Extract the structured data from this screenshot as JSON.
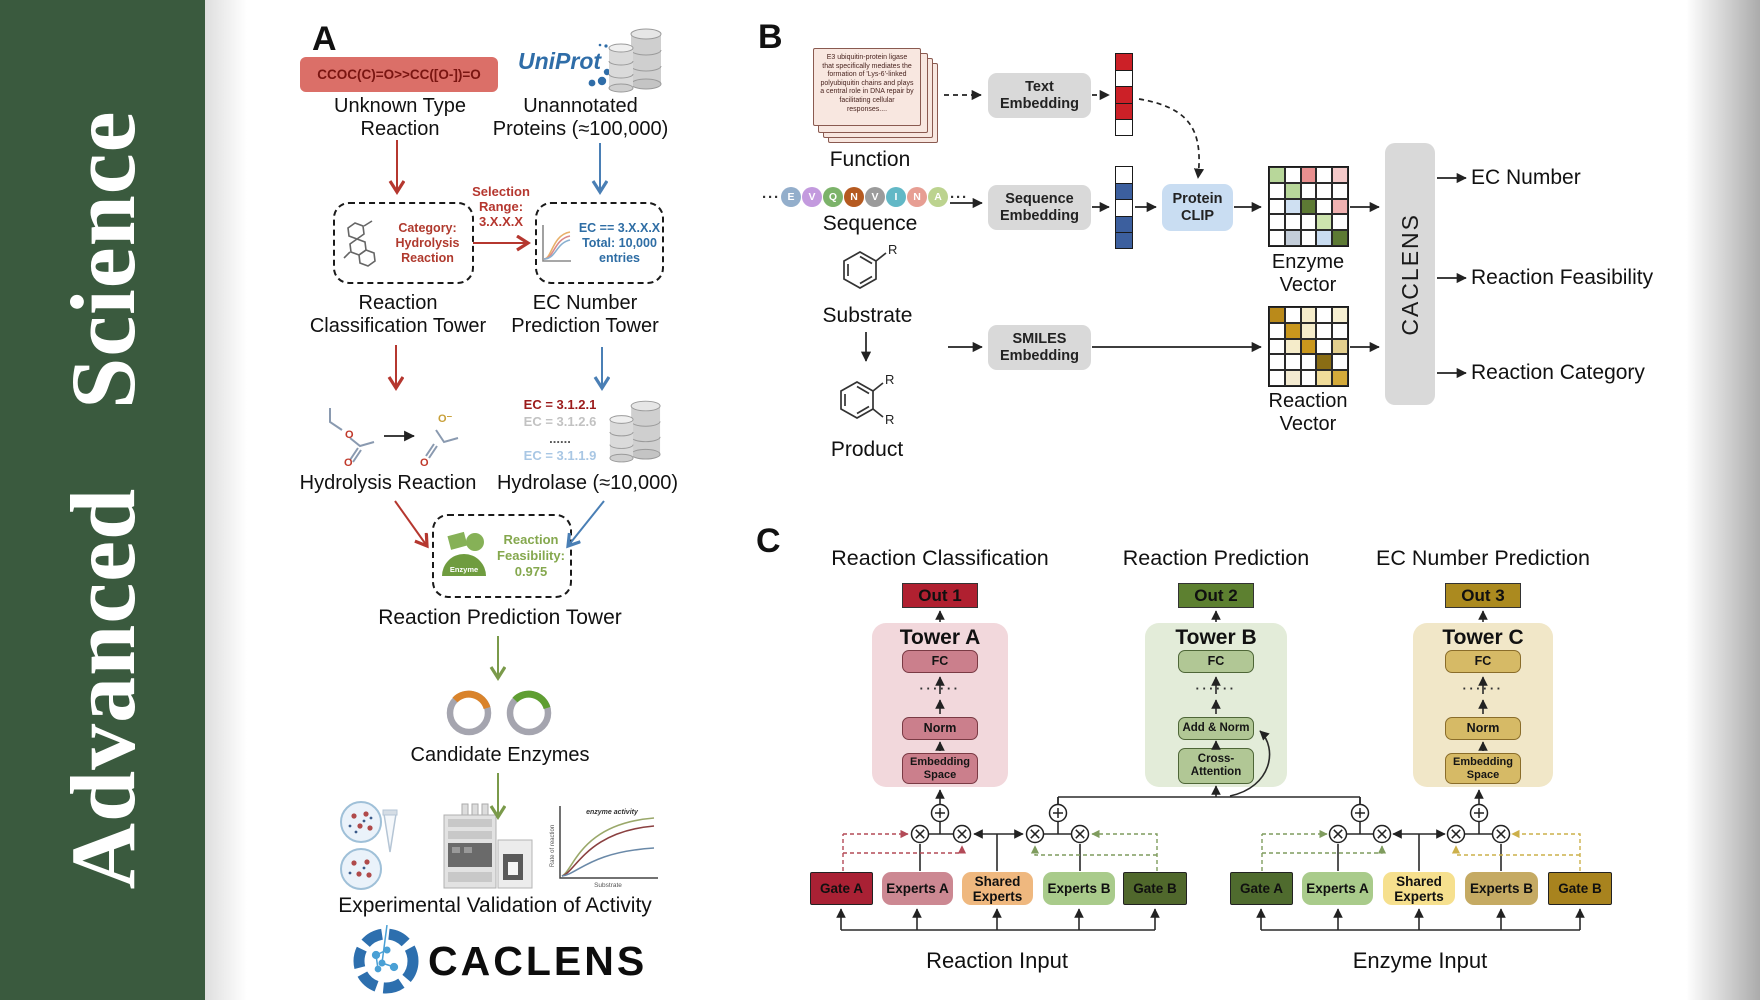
{
  "journal": {
    "title": "Advanced Science"
  },
  "colors": {
    "sidebar_green": "#3a5a3e",
    "red_accent": "#b5372f",
    "blue_accent": "#4a7fb5",
    "green_accent": "#7a9a4a",
    "smiles_box_bg": "#db6f68",
    "smiles_text": "#7a1511",
    "gray_box": "#d9d9d9",
    "protein_clip_bg": "#c9ddf2",
    "tower_a_bg": "#f2d8dc",
    "tower_a_box": "#cb7f8c",
    "out1_bg": "#b02030",
    "tower_b_bg": "#e3ecd9",
    "tower_b_box": "#b1c795",
    "out2_bg": "#5d8030",
    "tower_c_bg": "#f1e7c8",
    "tower_c_box": "#d6ba66",
    "out3_bg": "#ab8a1f",
    "moe_left": {
      "gate_a": "#a92134",
      "experts_a": "#cc8892",
      "shared": "#efb87f",
      "experts_b": "#a9cb8b",
      "gate_b": "#50682c"
    },
    "moe_right": {
      "gate_a": "#4f6b2e",
      "experts_a": "#a9cb8b",
      "shared": "#f6e08e",
      "experts_b": "#c5aa63",
      "gate_b": "#a8831e"
    }
  },
  "panelA": {
    "label": "A",
    "smiles": "CCOC(C)=O>>CC([O-])=O",
    "unknown_reaction": [
      "Unknown Type",
      "Reaction"
    ],
    "uniprot": "UniProt",
    "unannotated": [
      "Unannotated",
      "Proteins (≈100,000)"
    ],
    "selection": [
      "Selection",
      "Range:",
      "3.X.X.X"
    ],
    "category_box": [
      "Category:",
      "Hydrolysis",
      "Reaction"
    ],
    "ec_box": [
      "EC == 3.X.X.X",
      "Total: 10,000",
      "entries"
    ],
    "tower1": [
      "Reaction",
      "Classification Tower"
    ],
    "tower2": [
      "EC Number",
      "Prediction Tower"
    ],
    "ec_lines": [
      {
        "text": "EC = 3.1.2.1",
        "color": "#9b1b1b"
      },
      {
        "text": "EC = 3.1.2.6",
        "color": "#c2c2c2"
      },
      {
        "text": "......",
        "color": "#555555"
      },
      {
        "text": "EC = 3.1.1.9",
        "color": "#a9c7e4"
      }
    ],
    "hydrolysis": "Hydrolysis Reaction",
    "hydrolase": "Hydrolase (≈10,000)",
    "feasibility": [
      "Reaction",
      "Feasibility:",
      "0.975"
    ],
    "enzyme_icon_label": "Enzyme",
    "tower3": "Reaction Prediction Tower",
    "candidates": "Candidate Enzymes",
    "validation": "Experimental Validation of Activity",
    "minichart": {
      "curve_label": "enzyme activity",
      "ylabel": "Rate of reaction",
      "xlabel": "Substrate"
    },
    "brand": "CACLENS",
    "atom_o": "O",
    "atom_o_minus": "O⁻"
  },
  "panelB": {
    "label": "B",
    "function_card_text": "E3 ubiquitin-protein ligase that specifically mediates the formation of 'Lys-6'-linked polyubiquitin chains and plays a central role in DNA repair by facilitating cellular responses....",
    "function_label": "Function",
    "sequence_label": "Sequence",
    "substrate_label": "Substrate",
    "product_label": "Product",
    "r_group": "R",
    "ellipsis": "···",
    "text_embedding": "Text Embedding",
    "sequence_embedding": "Sequence Embedding",
    "smiles_embedding": "SMILES Embedding",
    "protein_clip": "Protein CLIP",
    "enzyme_vector_label": "Enzyme Vector",
    "reaction_vector_label": "Reaction Vector",
    "caclens_block": "CACLENS",
    "outputs": [
      "EC Number",
      "Reaction Feasibility",
      "Reaction Category"
    ],
    "sequence_beads": [
      {
        "letter": "E",
        "color": "#93aecb"
      },
      {
        "letter": "V",
        "color": "#c39ade"
      },
      {
        "letter": "Q",
        "color": "#7cb36a"
      },
      {
        "letter": "N",
        "color": "#b55a20"
      },
      {
        "letter": "V",
        "color": "#9b9b9b"
      },
      {
        "letter": "I",
        "color": "#62b8c6"
      },
      {
        "letter": "N",
        "color": "#e79e93"
      },
      {
        "letter": "A",
        "color": "#bcd38f"
      }
    ],
    "text_vector_cells": [
      "#cc2027",
      "#ffffff",
      "#cc2027",
      "#cc2027",
      "#ffffff"
    ],
    "sequence_vector_cells": [
      "#ffffff",
      "#3c5f9e",
      "#ffffff",
      "#3c5f9e",
      "#3c5f9e"
    ],
    "enzyme_vector_cells": [
      [
        "#b8d79a",
        "#ffffff",
        "#e88f8f",
        "#ffffff",
        "#f4c9c9"
      ],
      [
        "#ffffff",
        "#b8d79a",
        "#ffffff",
        "#ffffff",
        "#ffffff"
      ],
      [
        "#ffffff",
        "#cfe0f2",
        "#5d7a34",
        "#ffffff",
        "#f0b1b1"
      ],
      [
        "#ffffff",
        "#ffffff",
        "#ffffff",
        "#cde4ae",
        "#ffffff"
      ],
      [
        "#ffffff",
        "#c3cdd9",
        "#ffffff",
        "#c9dcf0",
        "#5d7a34"
      ]
    ],
    "reaction_vector_cells": [
      [
        "#ba8a1a",
        "#ffffff",
        "#f5ecca",
        "#ffffff",
        "#f7f0d2"
      ],
      [
        "#ffffff",
        "#c9971d",
        "#f5ecca",
        "#ffffff",
        "#ffffff"
      ],
      [
        "#ffffff",
        "#f5ecca",
        "#c9971d",
        "#ffffff",
        "#e3cf8e"
      ],
      [
        "#ffffff",
        "#ffffff",
        "#ffffff",
        "#8a6d14",
        "#ffffff"
      ],
      [
        "#ffffff",
        "#f3ead0",
        "#ffffff",
        "#f0dc9a",
        "#d4aa3a"
      ]
    ]
  },
  "panelC": {
    "label": "C",
    "dots": "······",
    "columns": [
      {
        "title": "Reaction Classification",
        "out": "Out 1",
        "tower": "Tower A",
        "fc": "FC",
        "mid": "Norm",
        "base": "Embedding Space"
      },
      {
        "title": "Reaction Prediction",
        "out": "Out 2",
        "tower": "Tower B",
        "fc": "FC",
        "mid": "Add & Norm",
        "base": "Cross-Attention"
      },
      {
        "title": "EC Number Prediction",
        "out": "Out 3",
        "tower": "Tower C",
        "fc": "FC",
        "mid": "Norm",
        "base": "Embedding Space"
      }
    ],
    "moe_groups": [
      {
        "input_label": "Reaction Input",
        "gate_a": "Gate A",
        "experts_a": "Experts A",
        "shared": "Shared Experts",
        "experts_b": "Experts B",
        "gate_b": "Gate B"
      },
      {
        "input_label": "Enzyme Input",
        "gate_a": "Gate A",
        "experts_a": "Experts A",
        "shared": "Shared Experts",
        "experts_b": "Experts B",
        "gate_b": "Gate B"
      }
    ]
  }
}
